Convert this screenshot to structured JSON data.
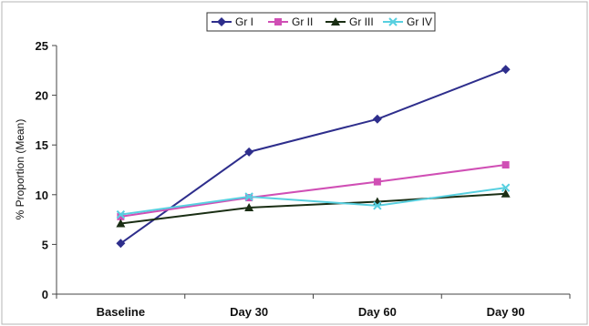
{
  "chart_data": {
    "type": "line",
    "title": "",
    "xlabel": "",
    "ylabel": "% Proportion (Mean)",
    "categories": [
      "Baseline",
      "Day 30",
      "Day 60",
      "Day 90"
    ],
    "ylim": [
      0,
      25
    ],
    "yticks": [
      0,
      5,
      10,
      15,
      20,
      25
    ],
    "grid": false,
    "legend_position": "top-center",
    "series": [
      {
        "name": "Gr I",
        "values": [
          5.1,
          14.3,
          17.6,
          22.6
        ],
        "color": "#2e2e8c",
        "marker": "diamond"
      },
      {
        "name": "Gr II",
        "values": [
          7.8,
          9.7,
          11.3,
          13.0
        ],
        "color": "#d04fb5",
        "marker": "square"
      },
      {
        "name": "Gr III",
        "values": [
          7.1,
          8.7,
          9.3,
          10.1
        ],
        "color": "#1a2e14",
        "marker": "triangle"
      },
      {
        "name": "Gr IV",
        "values": [
          8.0,
          9.8,
          8.9,
          10.7
        ],
        "color": "#58d0e0",
        "marker": "x"
      }
    ]
  }
}
